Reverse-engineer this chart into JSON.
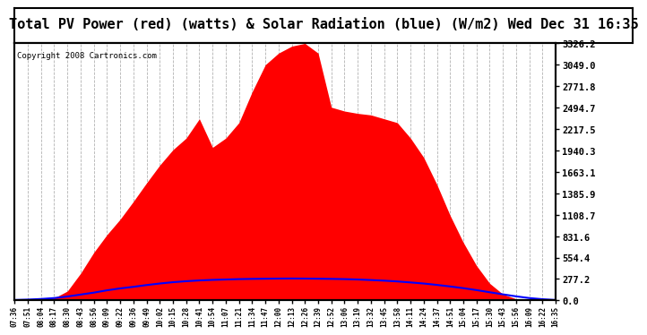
{
  "title": "Total PV Power (red) (watts) & Solar Radiation (blue) (W/m2) Wed Dec 31 16:35",
  "copyright": "Copyright 2008 Cartronics.com",
  "yticks": [
    0.0,
    277.2,
    554.4,
    831.6,
    1108.7,
    1385.9,
    1663.1,
    1940.3,
    2217.5,
    2494.7,
    2771.8,
    3049.0,
    3326.2
  ],
  "ymax": 3326.2,
  "xtick_labels": [
    "07:36",
    "07:51",
    "08:04",
    "08:17",
    "08:30",
    "08:43",
    "08:56",
    "09:09",
    "09:22",
    "09:36",
    "09:49",
    "10:02",
    "10:15",
    "10:28",
    "10:41",
    "10:54",
    "11:07",
    "11:21",
    "11:34",
    "11:47",
    "12:00",
    "12:13",
    "12:26",
    "12:39",
    "12:52",
    "13:06",
    "13:19",
    "13:32",
    "13:45",
    "13:58",
    "14:11",
    "14:24",
    "14:37",
    "14:51",
    "15:04",
    "15:17",
    "15:30",
    "15:43",
    "15:56",
    "16:09",
    "16:22",
    "16:35"
  ],
  "pv_values": [
    0,
    0,
    5,
    30,
    120,
    350,
    620,
    850,
    1050,
    1280,
    1520,
    1750,
    1950,
    2100,
    2350,
    1980,
    2100,
    2300,
    2700,
    3050,
    3200,
    3290,
    3326,
    3200,
    2500,
    2450,
    2420,
    2400,
    2350,
    2300,
    2100,
    1850,
    1500,
    1100,
    750,
    450,
    220,
    80,
    20,
    5,
    0,
    0
  ],
  "solar_values": [
    5,
    10,
    18,
    30,
    50,
    75,
    100,
    130,
    155,
    175,
    198,
    218,
    235,
    248,
    258,
    265,
    270,
    275,
    278,
    280,
    282,
    283,
    282,
    280,
    278,
    275,
    270,
    263,
    255,
    245,
    232,
    218,
    200,
    180,
    158,
    133,
    105,
    78,
    52,
    30,
    15,
    5
  ],
  "bg_color": "#ffffff",
  "plot_bg_color": "#ffffff",
  "grid_color": "#aaaaaa",
  "border_color": "#000000",
  "red_color": "#ff0000",
  "blue_color": "#0000ff",
  "title_font_size": 11,
  "copyright_font_size": 6.5
}
